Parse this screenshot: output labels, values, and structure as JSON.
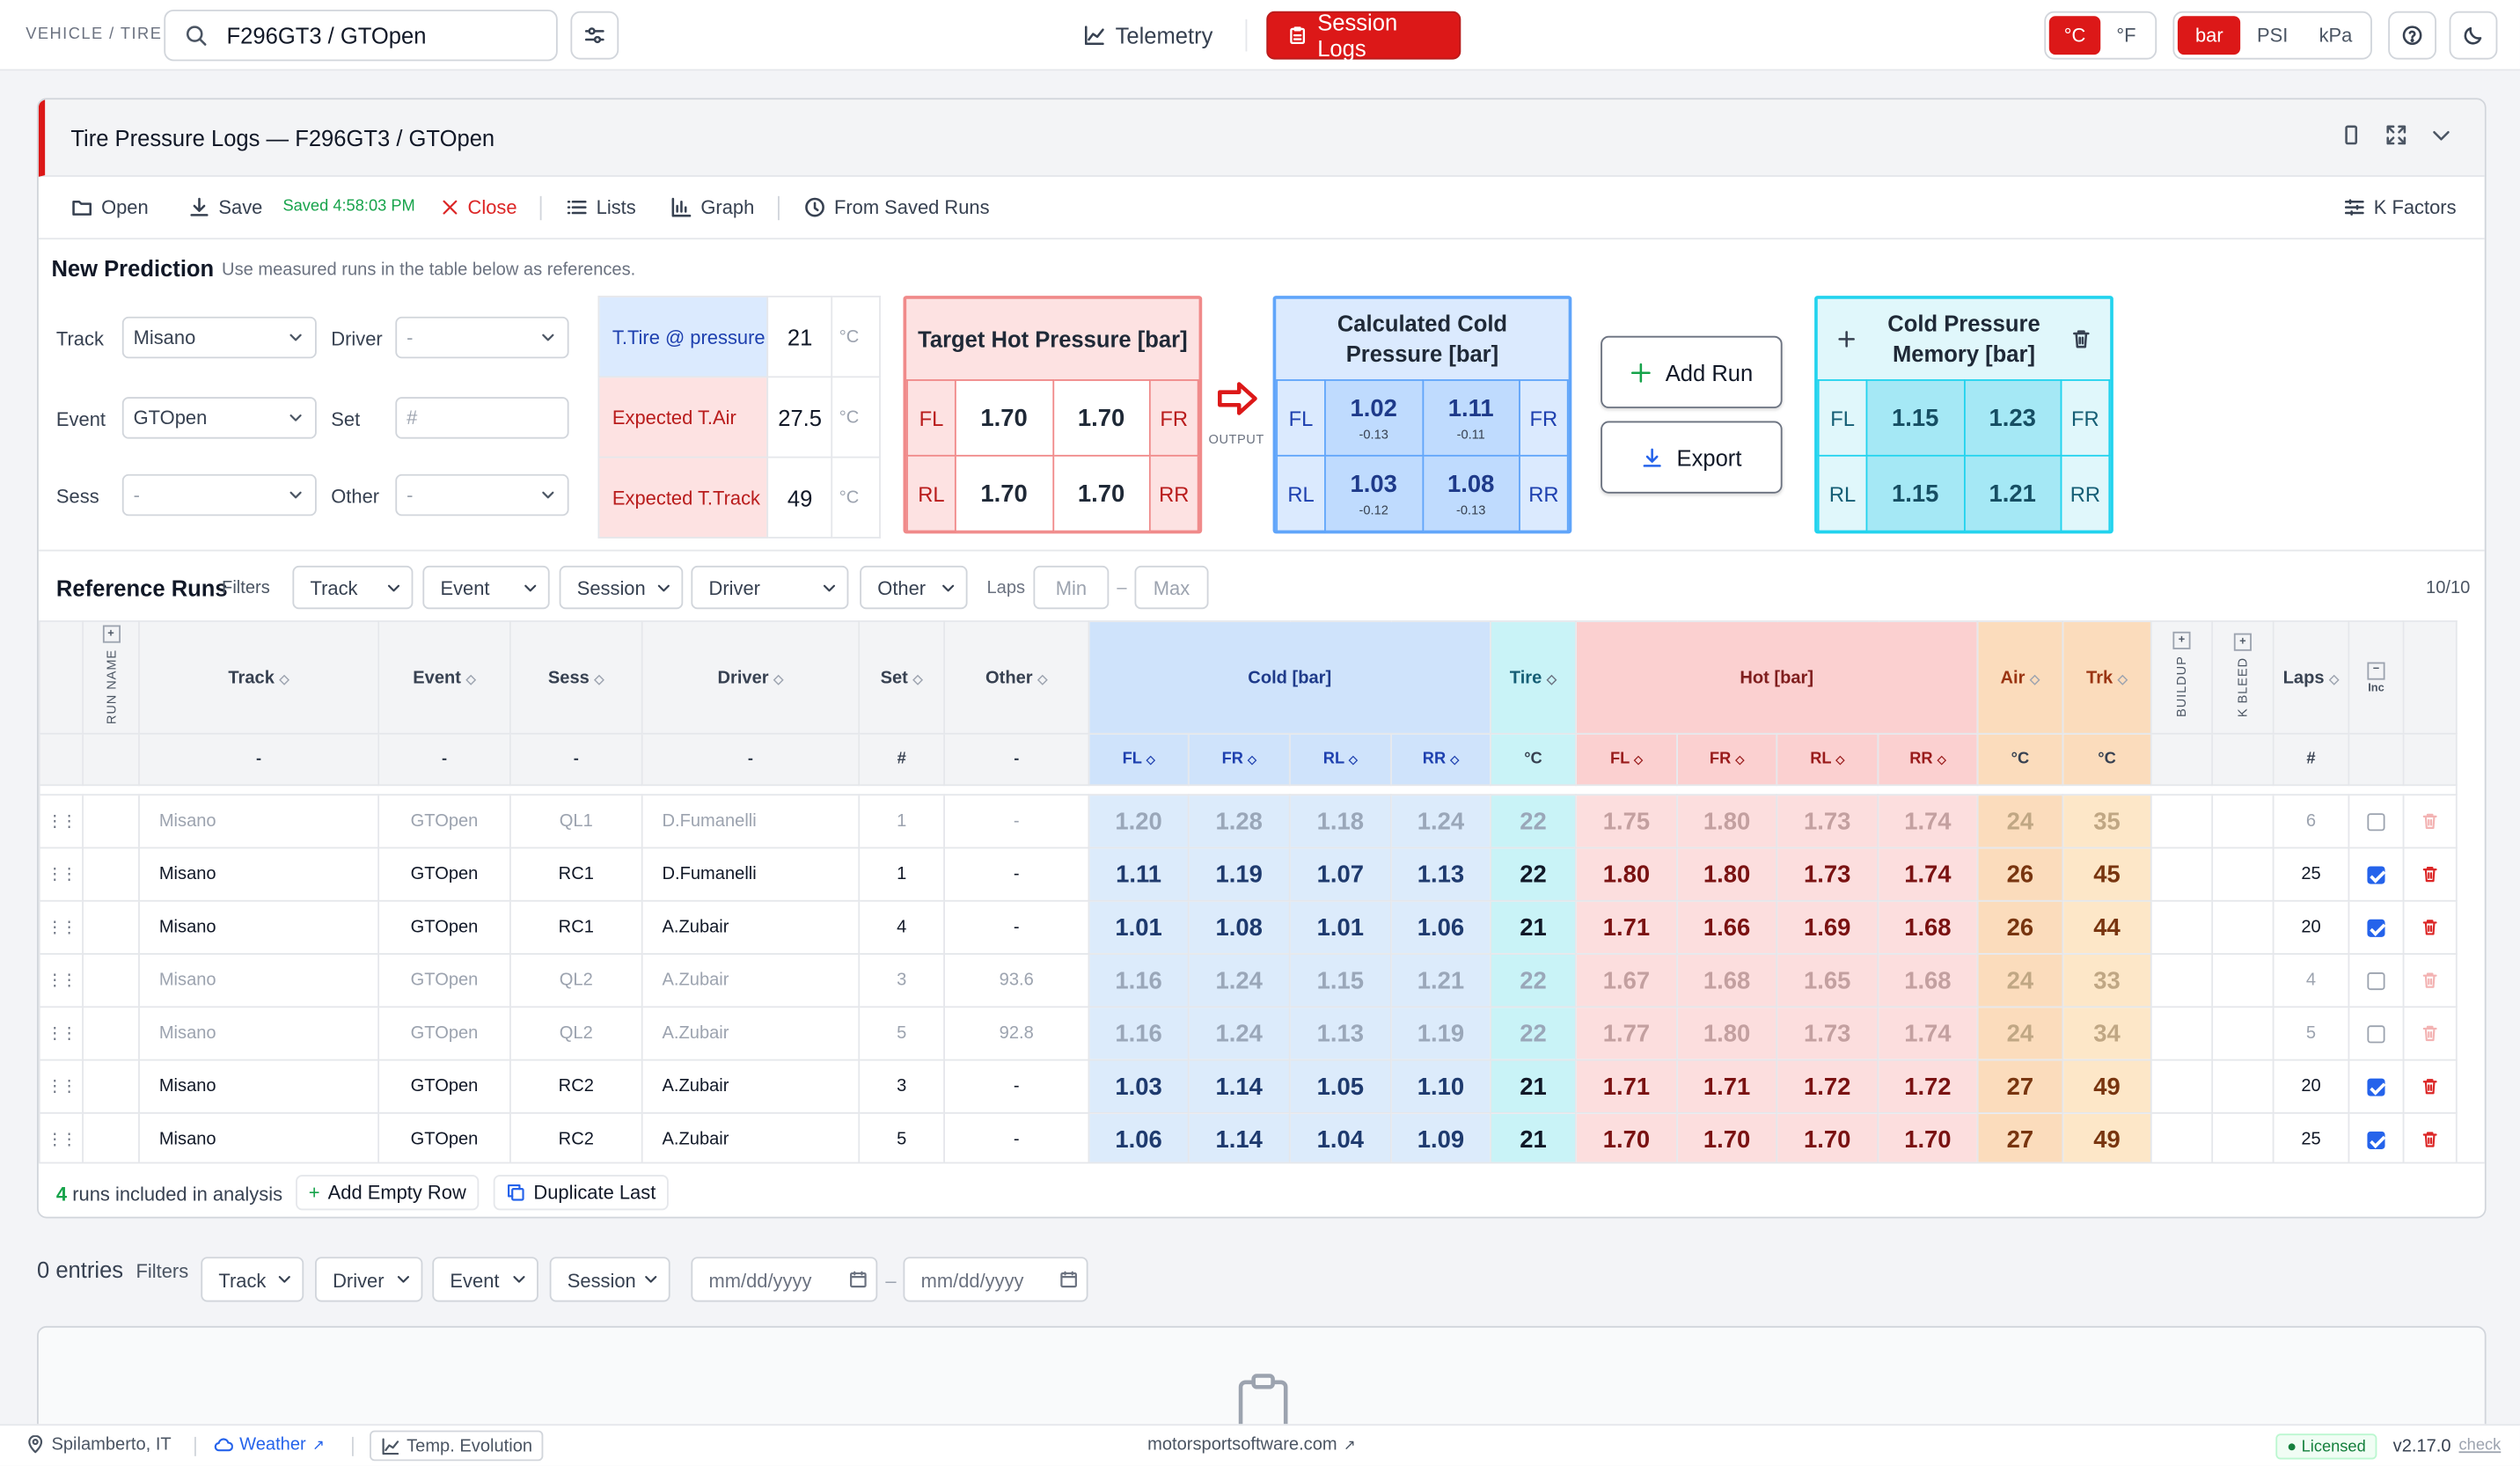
{
  "topbar": {
    "crumb": "VEHICLE / TIRE",
    "search_value": "F296GT3 / GTOpen",
    "nav_telemetry": "Telemetry",
    "nav_session_logs": "Session Logs",
    "temp_c": "°C",
    "temp_f": "°F",
    "unit_bar": "bar",
    "unit_psi": "PSI",
    "unit_kpa": "kPa"
  },
  "panel": {
    "title": "Tire Pressure Logs — F296GT3 / GTOpen"
  },
  "toolbar": {
    "open": "Open",
    "save": "Save",
    "saved": "Saved 4:58:03 PM",
    "close": "Close",
    "lists": "Lists",
    "graph": "Graph",
    "from_saved": "From Saved Runs",
    "k_factors": "K Factors"
  },
  "prediction": {
    "title": "New Prediction",
    "subtitle": "Use measured runs in the table below as references.",
    "track_label": "Track",
    "track_value": "Misano",
    "driver_label": "Driver",
    "driver_value": "-",
    "event_label": "Event",
    "event_value": "GTOpen",
    "set_label": "Set",
    "set_placeholder": "#",
    "sess_label": "Sess",
    "sess_value": "-",
    "other_label": "Other",
    "other_value": "-",
    "conditions": [
      {
        "label": "T.Tire @ pressure",
        "value": "21",
        "unit": "°C"
      },
      {
        "label": "Expected T.Air",
        "value": "27.5",
        "unit": "°C"
      },
      {
        "label": "Expected T.Track",
        "value": "49",
        "unit": "°C"
      }
    ],
    "target": {
      "title": "Target Hot Pressure [bar]",
      "fl": "1.70",
      "fr": "1.70",
      "rl": "1.70",
      "rr": "1.70"
    },
    "output_label": "OUTPUT",
    "cold": {
      "title": "Calculated Cold Pressure [bar]",
      "fl": "1.02",
      "fl_d": "-0.13",
      "fr": "1.11",
      "fr_d": "-0.11",
      "rl": "1.03",
      "rl_d": "-0.12",
      "rr": "1.08",
      "rr_d": "-0.13"
    },
    "add_run": "Add Run",
    "export": "Export",
    "memory": {
      "title": "Cold Pressure Memory [bar]",
      "fl": "1.15",
      "fr": "1.23",
      "rl": "1.15",
      "rr": "1.21"
    },
    "pos": {
      "fl": "FL",
      "fr": "FR",
      "rl": "RL",
      "rr": "RR"
    }
  },
  "ref": {
    "title": "Reference Runs",
    "filters_label": "Filters",
    "f_track": "Track",
    "f_event": "Event",
    "f_session": "Session",
    "f_driver": "Driver",
    "f_other": "Other",
    "laps_label": "Laps",
    "laps_min": "Min",
    "laps_dash": "–",
    "laps_max": "Max",
    "count": "10/10",
    "headers": {
      "run_name": "RUN NAME",
      "track": "Track",
      "event": "Event",
      "sess": "Sess",
      "driver": "Driver",
      "set": "Set",
      "other": "Other",
      "cold": "Cold [bar]",
      "tire": "Tire",
      "hot": "Hot [bar]",
      "air": "Air",
      "trk": "Trk",
      "buildup": "BUILDUP",
      "kbleed": "K BLEED",
      "laps": "Laps",
      "inc": "Inc"
    },
    "sub": {
      "dash": "-",
      "hash": "#",
      "fl": "FL",
      "fr": "FR",
      "rl": "RL",
      "rr": "RR",
      "degc": "°C"
    },
    "rows": [
      {
        "track": "Misano",
        "event": "GTOpen",
        "sess": "QL1",
        "driver": "D.Fumanelli",
        "set": "1",
        "other": "-",
        "cfl": "1.20",
        "cfr": "1.28",
        "crl": "1.18",
        "crr": "1.24",
        "tire": "22",
        "hfl": "1.75",
        "hfr": "1.80",
        "hrl": "1.73",
        "hrr": "1.74",
        "air": "24",
        "trk": "35",
        "laps": "6",
        "inc": false
      },
      {
        "track": "Misano",
        "event": "GTOpen",
        "sess": "RC1",
        "driver": "D.Fumanelli",
        "set": "1",
        "other": "-",
        "cfl": "1.11",
        "cfr": "1.19",
        "crl": "1.07",
        "crr": "1.13",
        "tire": "22",
        "hfl": "1.80",
        "hfr": "1.80",
        "hrl": "1.73",
        "hrr": "1.74",
        "air": "26",
        "trk": "45",
        "laps": "25",
        "inc": true
      },
      {
        "track": "Misano",
        "event": "GTOpen",
        "sess": "RC1",
        "driver": "A.Zubair",
        "set": "4",
        "other": "-",
        "cfl": "1.01",
        "cfr": "1.08",
        "crl": "1.01",
        "crr": "1.06",
        "tire": "21",
        "hfl": "1.71",
        "hfr": "1.66",
        "hrl": "1.69",
        "hrr": "1.68",
        "air": "26",
        "trk": "44",
        "laps": "20",
        "inc": true
      },
      {
        "track": "Misano",
        "event": "GTOpen",
        "sess": "QL2",
        "driver": "A.Zubair",
        "set": "3",
        "other": "93.6",
        "cfl": "1.16",
        "cfr": "1.24",
        "crl": "1.15",
        "crr": "1.21",
        "tire": "22",
        "hfl": "1.67",
        "hfr": "1.68",
        "hrl": "1.65",
        "hrr": "1.68",
        "air": "24",
        "trk": "33",
        "laps": "4",
        "inc": false
      },
      {
        "track": "Misano",
        "event": "GTOpen",
        "sess": "QL2",
        "driver": "A.Zubair",
        "set": "5",
        "other": "92.8",
        "cfl": "1.16",
        "cfr": "1.24",
        "crl": "1.13",
        "crr": "1.19",
        "tire": "22",
        "hfl": "1.77",
        "hfr": "1.80",
        "hrl": "1.73",
        "hrr": "1.74",
        "air": "24",
        "trk": "34",
        "laps": "5",
        "inc": false
      },
      {
        "track": "Misano",
        "event": "GTOpen",
        "sess": "RC2",
        "driver": "A.Zubair",
        "set": "3",
        "other": "-",
        "cfl": "1.03",
        "cfr": "1.14",
        "crl": "1.05",
        "crr": "1.10",
        "tire": "21",
        "hfl": "1.71",
        "hfr": "1.71",
        "hrl": "1.72",
        "hrr": "1.72",
        "air": "27",
        "trk": "49",
        "laps": "20",
        "inc": true
      },
      {
        "track": "Misano",
        "event": "GTOpen",
        "sess": "RC2",
        "driver": "A.Zubair",
        "set": "5",
        "other": "-",
        "cfl": "1.06",
        "cfr": "1.14",
        "crl": "1.04",
        "crr": "1.09",
        "tire": "21",
        "hfl": "1.70",
        "hfr": "1.70",
        "hrl": "1.70",
        "hrr": "1.70",
        "air": "27",
        "trk": "49",
        "laps": "25",
        "inc": true
      }
    ],
    "footer": {
      "count": "4",
      "runs_text": "runs included in analysis",
      "add_empty": "Add Empty Row",
      "duplicate": "Duplicate Last"
    }
  },
  "entries": {
    "count": "0 entries",
    "filters_label": "Filters",
    "f_track": "Track",
    "f_driver": "Driver",
    "f_event": "Event",
    "f_session": "Session",
    "date_placeholder": "mm/dd/yyyy",
    "dash": "–"
  },
  "footer": {
    "location": "Spilamberto, IT",
    "weather": "Weather",
    "temp_evolution": "Temp. Evolution",
    "site": "motorsportsoftware.com",
    "licensed": "Licensed",
    "version": "v2.17.0",
    "check": "check"
  },
  "colors": {
    "accent": "#dc1818",
    "cold": "#cfe3fb",
    "hot": "#fbd0d0",
    "tire": "#c9f3f7",
    "air": "#fbdcbc"
  }
}
